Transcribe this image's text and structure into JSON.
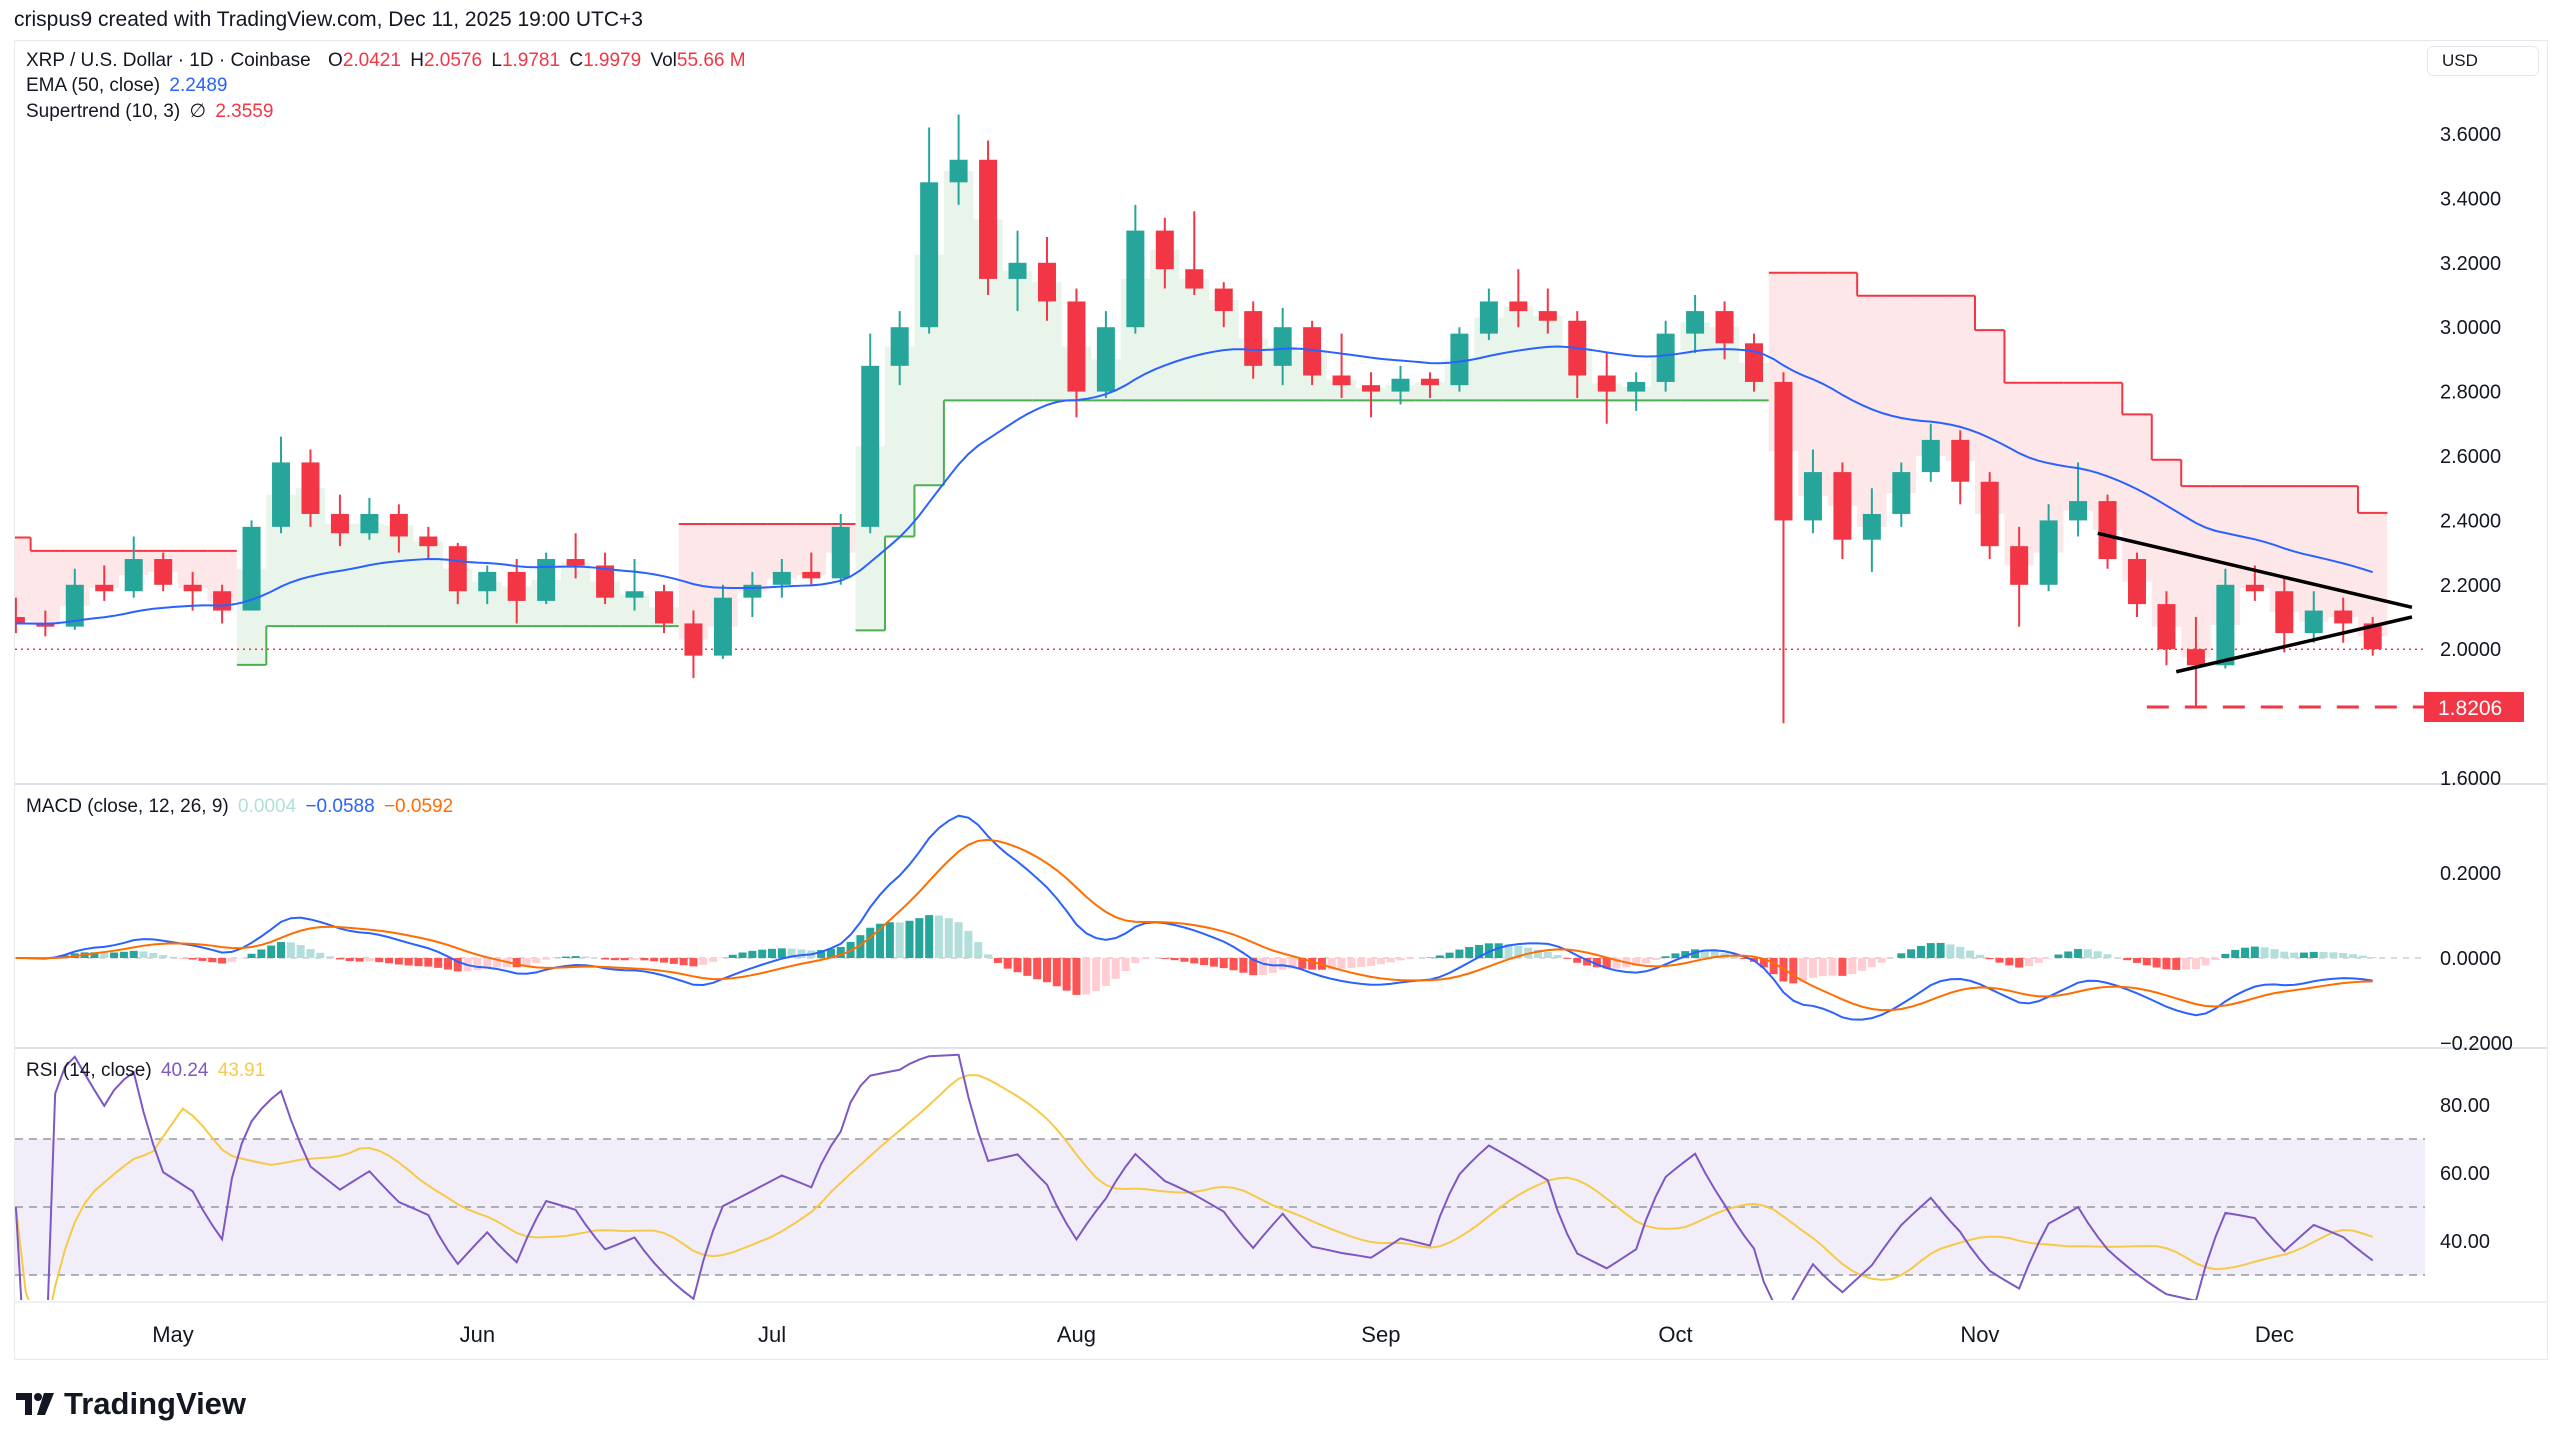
{
  "credit": "crispus9 created with TradingView.com, Dec 11, 2025 19:00 UTC+3",
  "legend": {
    "symbol": "XRP / U.S. Dollar · 1D · Coinbase",
    "o_label": "O",
    "o": "2.0421",
    "h_label": "H",
    "h": "2.0576",
    "l_label": "L",
    "l": "1.9781",
    "c_label": "C",
    "c": "1.9979",
    "vol_label": "Vol",
    "vol": "55.66 M",
    "ema_label": "EMA (50, close)",
    "ema_value": "2.2489",
    "st_label": "Supertrend (10, 3)",
    "st_icon": "∅",
    "st_value": "2.3559",
    "macd_label": "MACD (close, 12, 26, 9)",
    "macd_hist": "0.0004",
    "macd_value": "−0.0588",
    "macd_signal": "−0.0592",
    "rsi_label": "RSI (14, close)",
    "rsi_value": "40.24",
    "rsi_ma": "43.91"
  },
  "currency": "USD",
  "logo": "TradingView",
  "colors": {
    "up": "#26a69a",
    "down": "#f23645",
    "ema": "#2962ff",
    "macd": "#2962ff",
    "signal": "#ff6d00",
    "rsi": "#7e57c2",
    "rsi_ma": "#f7c948",
    "st_down": "#f23645",
    "st_up": "#4caf50"
  },
  "chart_data": {
    "type": "candlestick",
    "title": "XRP / U.S. Dollar · 1D · Coinbase",
    "price_ticks": [
      "3.6000",
      "3.4000",
      "3.2000",
      "3.0000",
      "2.8000",
      "2.6000",
      "2.4000",
      "2.2000",
      "2.0000",
      "1.6000"
    ],
    "ylim": [
      1.6,
      3.7
    ],
    "macd_ticks": [
      "0.2000",
      "0.0000",
      "−0.2000"
    ],
    "rsi_ticks": [
      "80.00",
      "60.00",
      "40.00"
    ],
    "rsi_bands": [
      30,
      50,
      70
    ],
    "x_ticks": [
      {
        "label": "May",
        "date": "05-01"
      },
      {
        "label": "Jun",
        "date": "06-01"
      },
      {
        "label": "Jul",
        "date": "07-01"
      },
      {
        "label": "Aug",
        "date": "08-01"
      },
      {
        "label": "Sep",
        "date": "09-01"
      },
      {
        "label": "Oct",
        "date": "10-01"
      },
      {
        "label": "Nov",
        "date": "11-01"
      },
      {
        "label": "Dec",
        "date": "12-01"
      }
    ],
    "support_level": {
      "value": 1.8206,
      "label": "1.8206",
      "from": "11-18"
    },
    "current_price_line": 2.0,
    "triangle": {
      "upper": [
        [
          "11-13",
          2.36
        ],
        [
          "12-15",
          2.13
        ]
      ],
      "lower": [
        [
          "11-21",
          1.93
        ],
        [
          "12-15",
          2.1
        ]
      ]
    },
    "candles": [
      [
        "04-15",
        2.1,
        2.16,
        2.05,
        2.08
      ],
      [
        "04-18",
        2.08,
        2.12,
        2.04,
        2.07
      ],
      [
        "04-21",
        2.07,
        2.25,
        2.06,
        2.2
      ],
      [
        "04-24",
        2.2,
        2.26,
        2.15,
        2.18
      ],
      [
        "04-27",
        2.18,
        2.35,
        2.16,
        2.28
      ],
      [
        "04-30",
        2.28,
        2.3,
        2.18,
        2.2
      ],
      [
        "05-03",
        2.2,
        2.24,
        2.12,
        2.18
      ],
      [
        "05-06",
        2.18,
        2.2,
        2.08,
        2.12
      ],
      [
        "05-09",
        2.12,
        2.4,
        2.12,
        2.38
      ],
      [
        "05-12",
        2.38,
        2.66,
        2.36,
        2.58
      ],
      [
        "05-15",
        2.58,
        2.62,
        2.38,
        2.42
      ],
      [
        "05-18",
        2.42,
        2.48,
        2.32,
        2.36
      ],
      [
        "05-21",
        2.36,
        2.47,
        2.34,
        2.42
      ],
      [
        "05-24",
        2.42,
        2.45,
        2.3,
        2.35
      ],
      [
        "05-27",
        2.35,
        2.38,
        2.28,
        2.32
      ],
      [
        "05-30",
        2.32,
        2.33,
        2.14,
        2.18
      ],
      [
        "06-02",
        2.18,
        2.26,
        2.14,
        2.24
      ],
      [
        "06-05",
        2.24,
        2.28,
        2.08,
        2.15
      ],
      [
        "06-08",
        2.15,
        2.3,
        2.14,
        2.28
      ],
      [
        "06-11",
        2.28,
        2.36,
        2.22,
        2.26
      ],
      [
        "06-14",
        2.26,
        2.3,
        2.14,
        2.16
      ],
      [
        "06-17",
        2.16,
        2.28,
        2.12,
        2.18
      ],
      [
        "06-20",
        2.18,
        2.2,
        2.05,
        2.08
      ],
      [
        "06-23",
        2.08,
        2.12,
        1.91,
        1.98
      ],
      [
        "06-26",
        1.98,
        2.2,
        1.97,
        2.16
      ],
      [
        "06-29",
        2.16,
        2.24,
        2.1,
        2.2
      ],
      [
        "07-02",
        2.2,
        2.28,
        2.16,
        2.24
      ],
      [
        "07-05",
        2.24,
        2.3,
        2.2,
        2.22
      ],
      [
        "07-08",
        2.22,
        2.42,
        2.2,
        2.38
      ],
      [
        "07-11",
        2.38,
        2.98,
        2.36,
        2.88
      ],
      [
        "07-14",
        2.88,
        3.05,
        2.82,
        3.0
      ],
      [
        "07-17",
        3.0,
        3.62,
        2.98,
        3.45
      ],
      [
        "07-20",
        3.45,
        3.66,
        3.38,
        3.52
      ],
      [
        "07-23",
        3.52,
        3.58,
        3.1,
        3.15
      ],
      [
        "07-26",
        3.15,
        3.3,
        3.05,
        3.2
      ],
      [
        "07-29",
        3.2,
        3.28,
        3.02,
        3.08
      ],
      [
        "08-01",
        3.08,
        3.12,
        2.72,
        2.8
      ],
      [
        "08-04",
        2.8,
        3.05,
        2.78,
        3.0
      ],
      [
        "08-07",
        3.0,
        3.38,
        2.98,
        3.3
      ],
      [
        "08-10",
        3.3,
        3.34,
        3.12,
        3.18
      ],
      [
        "08-13",
        3.18,
        3.36,
        3.1,
        3.12
      ],
      [
        "08-16",
        3.12,
        3.14,
        3.0,
        3.05
      ],
      [
        "08-19",
        3.05,
        3.08,
        2.84,
        2.88
      ],
      [
        "08-22",
        2.88,
        3.06,
        2.82,
        3.0
      ],
      [
        "08-25",
        3.0,
        3.02,
        2.82,
        2.85
      ],
      [
        "08-28",
        2.85,
        2.98,
        2.78,
        2.82
      ],
      [
        "08-31",
        2.82,
        2.86,
        2.72,
        2.8
      ],
      [
        "09-03",
        2.8,
        2.88,
        2.76,
        2.84
      ],
      [
        "09-06",
        2.84,
        2.86,
        2.78,
        2.82
      ],
      [
        "09-09",
        2.82,
        3.0,
        2.8,
        2.98
      ],
      [
        "09-12",
        2.98,
        3.12,
        2.96,
        3.08
      ],
      [
        "09-15",
        3.08,
        3.18,
        3.0,
        3.05
      ],
      [
        "09-18",
        3.05,
        3.12,
        2.98,
        3.02
      ],
      [
        "09-21",
        3.02,
        3.05,
        2.78,
        2.85
      ],
      [
        "09-24",
        2.85,
        2.92,
        2.7,
        2.8
      ],
      [
        "09-27",
        2.8,
        2.86,
        2.74,
        2.83
      ],
      [
        "09-30",
        2.83,
        3.02,
        2.8,
        2.98
      ],
      [
        "10-03",
        2.98,
        3.1,
        2.92,
        3.05
      ],
      [
        "10-06",
        3.05,
        3.08,
        2.9,
        2.95
      ],
      [
        "10-09",
        2.95,
        2.98,
        2.8,
        2.83
      ],
      [
        "10-12",
        2.83,
        2.86,
        1.77,
        2.4
      ],
      [
        "10-15",
        2.4,
        2.62,
        2.36,
        2.55
      ],
      [
        "10-18",
        2.55,
        2.58,
        2.28,
        2.34
      ],
      [
        "10-21",
        2.34,
        2.5,
        2.24,
        2.42
      ],
      [
        "10-24",
        2.42,
        2.58,
        2.38,
        2.55
      ],
      [
        "10-27",
        2.55,
        2.7,
        2.52,
        2.65
      ],
      [
        "10-30",
        2.65,
        2.68,
        2.45,
        2.52
      ],
      [
        "11-02",
        2.52,
        2.55,
        2.28,
        2.32
      ],
      [
        "11-05",
        2.32,
        2.38,
        2.07,
        2.2
      ],
      [
        "11-08",
        2.2,
        2.45,
        2.18,
        2.4
      ],
      [
        "11-11",
        2.4,
        2.58,
        2.35,
        2.46
      ],
      [
        "11-14",
        2.46,
        2.48,
        2.25,
        2.28
      ],
      [
        "11-17",
        2.28,
        2.3,
        2.1,
        2.14
      ],
      [
        "11-20",
        2.14,
        2.18,
        1.95,
        2.0
      ],
      [
        "11-23",
        2.0,
        2.1,
        1.82,
        1.95
      ],
      [
        "11-26",
        1.95,
        2.25,
        1.94,
        2.2
      ],
      [
        "11-29",
        2.2,
        2.26,
        2.15,
        2.18
      ],
      [
        "12-02",
        2.18,
        2.22,
        1.99,
        2.05
      ],
      [
        "12-05",
        2.05,
        2.18,
        2.02,
        2.12
      ],
      [
        "12-08",
        2.12,
        2.16,
        2.02,
        2.08
      ],
      [
        "12-11",
        2.08,
        2.1,
        1.98,
        2.0
      ]
    ]
  }
}
